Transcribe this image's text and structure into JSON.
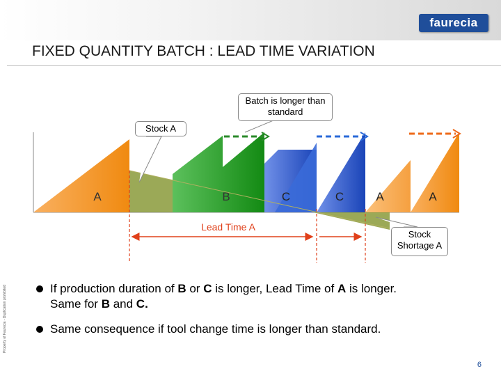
{
  "header": {
    "logo": "faurecia",
    "title": "FIXED QUANTITY BATCH : LEAD TIME VARIATION"
  },
  "sidebar_text": "Property of Faurecia - Duplication prohibited",
  "callouts": {
    "batch": "Batch is longer than standard",
    "stock_a": "Stock A",
    "stock_shortage": "Stock Shortage A"
  },
  "diagram": {
    "labels": [
      "A",
      "B",
      "C",
      "C",
      "A",
      "A"
    ],
    "lead_time_label": "Lead Time A",
    "colors": {
      "orange": "#f7931e",
      "green": "#1e9e1e",
      "blue": "#2e5fd0",
      "olive": "#8a9a3a",
      "dash_green": "#2a8a2a",
      "dash_blue": "#2a6ad8",
      "dash_orange": "#ee6a1a",
      "red_line": "#e0401a"
    }
  },
  "bullets": {
    "b1": {
      "pre": "If production duration of ",
      "b": "B",
      "mid": " or ",
      "c": "C",
      "post": " is longer, Lead Time of ",
      "a": "A",
      "end": " is longer.",
      "line2_pre": "Same for ",
      "line2_b": "B",
      "line2_and": " and ",
      "line2_c": "C."
    },
    "b2": "Same consequence if tool change time is longer than standard."
  },
  "page_number": "6"
}
